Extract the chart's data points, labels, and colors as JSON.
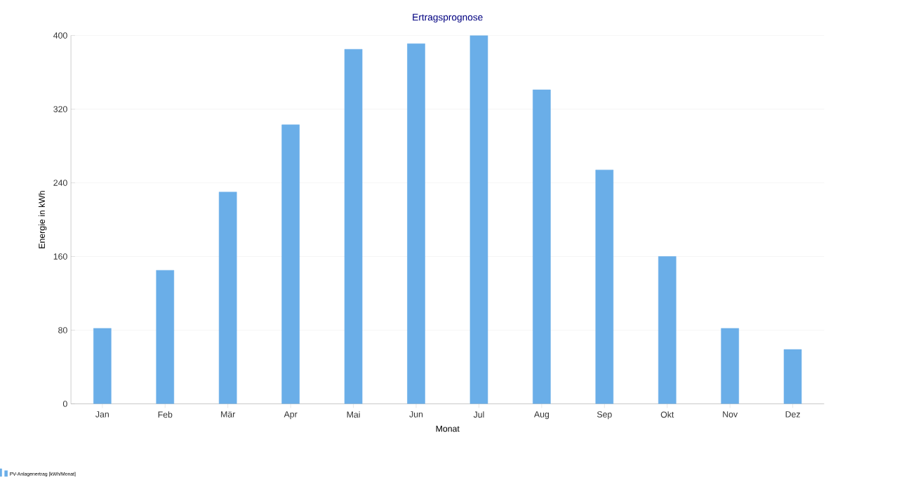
{
  "chart_data": {
    "type": "bar",
    "title": "Ertragsprognose",
    "xlabel": "Monat",
    "ylabel": "Energie in kWh",
    "categories": [
      "Jan",
      "Feb",
      "Mär",
      "Apr",
      "Mai",
      "Jun",
      "Jul",
      "Aug",
      "Sep",
      "Okt",
      "Nov",
      "Dez"
    ],
    "series": [
      {
        "name": "PV-Anlagenertrag [kWh/Monat]",
        "color": "#6aaee8",
        "values": [
          82,
          145,
          230,
          303,
          385,
          391,
          400,
          341,
          254,
          160,
          82,
          59
        ]
      }
    ],
    "ylim": [
      0,
      400
    ],
    "yticks": [
      0,
      80,
      160,
      240,
      320,
      400
    ],
    "grid": "y",
    "legend": "bottom left"
  }
}
